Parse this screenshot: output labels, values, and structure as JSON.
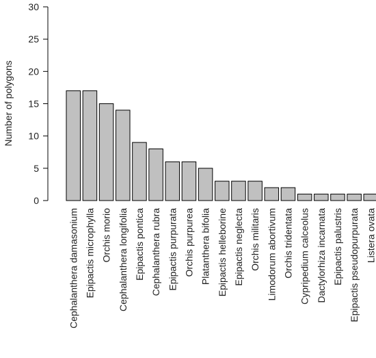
{
  "chart_data": {
    "type": "bar",
    "title": "",
    "xlabel": "",
    "ylabel": "Number of polygons",
    "ylim": [
      0,
      30
    ],
    "yticks": [
      0,
      5,
      10,
      15,
      20,
      25,
      30
    ],
    "grid": false,
    "legend": "none",
    "bar_color": "#c0c0c0",
    "bar_edge_color": "#000000",
    "categories": [
      "Cephalanthera damasonium",
      "Epipactis microphylla",
      "Orchis morio",
      "Cephalanthera longifolia",
      "Epipactis pontica",
      "Cephalanthera rubra",
      "Epipactis purpurata",
      "Orchis purpurea",
      "Platanthera bifolia",
      "Epipactis helleborine",
      "Epipactis neglecta",
      "Orchis militaris",
      "Limodorum abortivum",
      "Orchis tridentata",
      "Cypripedium calceolus",
      "Dactylorhiza incarnata",
      "Epipactis palustris",
      "Epipactis pseudopurpurata",
      "Listera ovata"
    ],
    "values": [
      17,
      17,
      15,
      14,
      9,
      8,
      6,
      6,
      5,
      3,
      3,
      3,
      2,
      2,
      1,
      1,
      1,
      1,
      1
    ]
  }
}
